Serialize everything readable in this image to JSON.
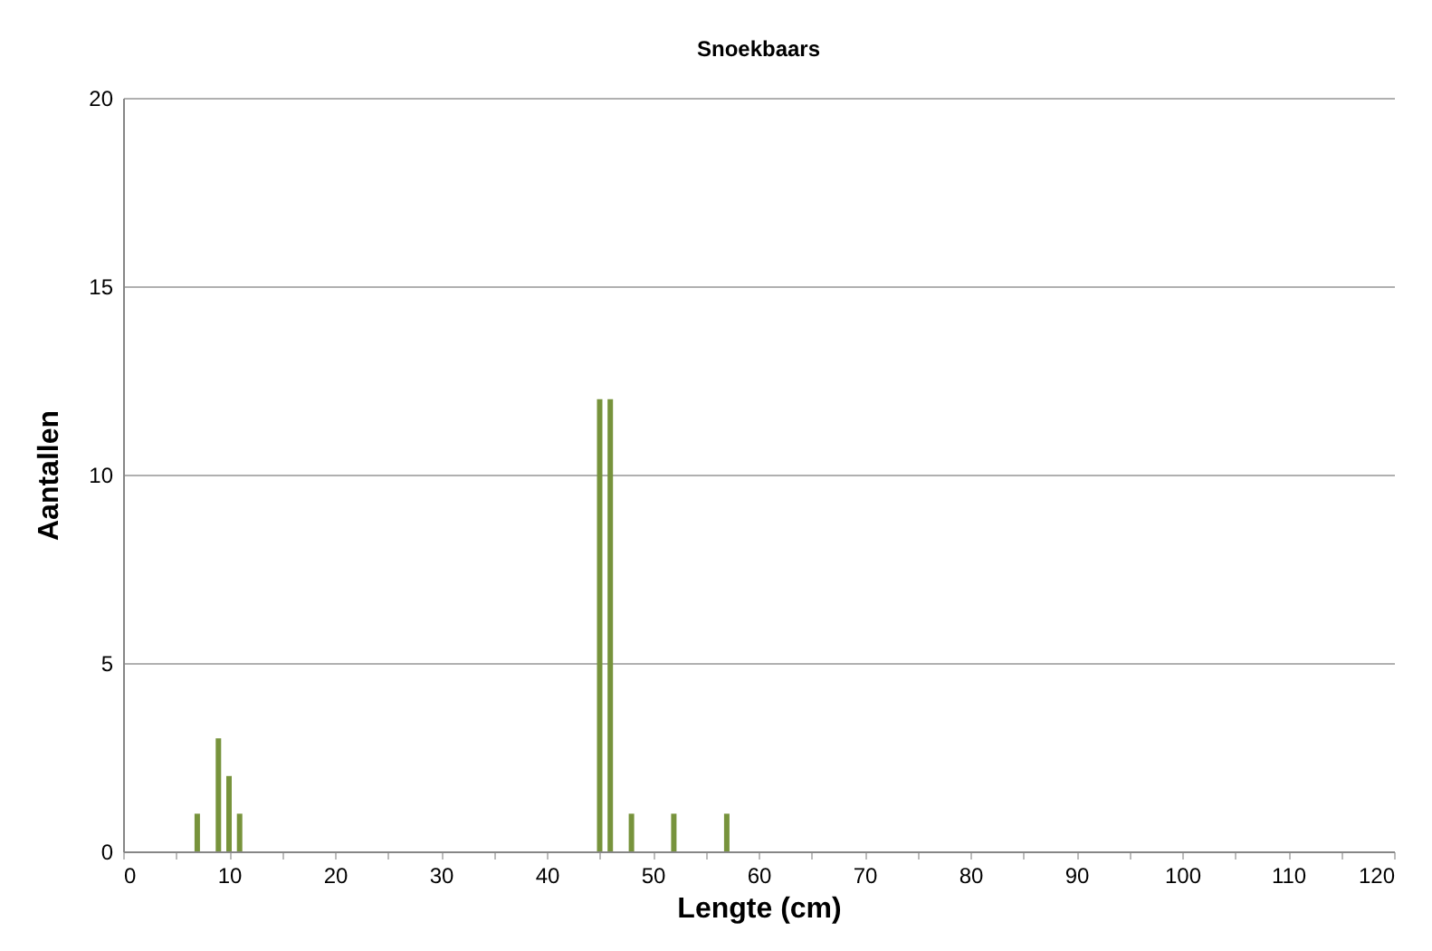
{
  "chart_data": {
    "type": "bar",
    "title": "Snoekbaars",
    "xlabel": "Lengte (cm)",
    "ylabel": "Aantallen",
    "x": [
      7,
      9,
      10,
      11,
      45,
      46,
      48,
      52,
      57
    ],
    "values": [
      1,
      3,
      2,
      1,
      12,
      12,
      1,
      1,
      1
    ],
    "color": "#77933c",
    "xlim": [
      0,
      120
    ],
    "xticks": [
      0,
      {
        "value": 5,
        "label": null
      },
      10,
      {
        "value": 15,
        "label": null
      },
      20,
      {
        "value": 25,
        "label": null
      },
      30,
      {
        "value": 35,
        "label": null
      },
      40,
      {
        "value": 45,
        "label": null
      },
      50,
      {
        "value": 55,
        "label": null
      },
      60,
      {
        "value": 65,
        "label": null
      },
      70,
      {
        "value": 75,
        "label": null
      },
      80,
      {
        "value": 85,
        "label": null
      },
      90,
      {
        "value": 95,
        "label": null
      },
      100,
      {
        "value": 105,
        "label": null
      },
      110,
      {
        "value": 115,
        "label": null
      },
      120
    ],
    "ylim": [
      0,
      20
    ],
    "yticks": [
      0,
      5,
      10,
      15,
      20
    ],
    "grid": "y"
  }
}
